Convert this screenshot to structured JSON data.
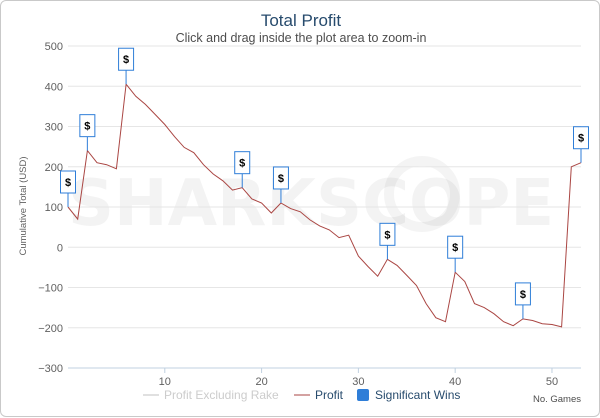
{
  "colors": {
    "title": "#274b6d",
    "profit_line": "#aa4643",
    "rake_line": "#c0c0c0",
    "significant_wins": "#2f7ed8",
    "grid": "#e6e6e6",
    "axis": "#c0d0e0"
  },
  "watermark": "SHARKSCOPE",
  "chart_data": {
    "type": "line",
    "title": "Total Profit",
    "subtitle": "Click and drag inside the plot area to zoom-in",
    "ylabel": "Cumulative Total (USD)",
    "xlabel": "No. Games",
    "xlim": [
      0,
      53
    ],
    "ylim": [
      -300,
      500
    ],
    "xticks": [
      10,
      20,
      30,
      40,
      50
    ],
    "yticks": [
      -300,
      -200,
      -100,
      0,
      100,
      200,
      300,
      400,
      500
    ],
    "legend_position": "bottom",
    "series": [
      {
        "name": "Profit Excluding Rake",
        "visible": false,
        "values": []
      },
      {
        "name": "Profit",
        "x": [
          0,
          1,
          2,
          3,
          4,
          5,
          6,
          7,
          8,
          9,
          10,
          11,
          12,
          13,
          14,
          15,
          16,
          17,
          18,
          19,
          20,
          21,
          22,
          23,
          24,
          25,
          26,
          27,
          28,
          29,
          30,
          31,
          32,
          33,
          34,
          35,
          36,
          37,
          38,
          39,
          40,
          41,
          42,
          43,
          44,
          45,
          46,
          47,
          48,
          49,
          50,
          51,
          52,
          53
        ],
        "values": [
          100,
          70,
          240,
          210,
          205,
          195,
          405,
          375,
          355,
          330,
          305,
          275,
          248,
          235,
          205,
          182,
          165,
          142,
          148,
          120,
          110,
          85,
          110,
          96,
          88,
          68,
          53,
          43,
          24,
          30,
          -22,
          -48,
          -72,
          -30,
          -45,
          -70,
          -95,
          -140,
          -175,
          -185,
          -62,
          -85,
          -140,
          -150,
          -165,
          -185,
          -195,
          -178,
          -182,
          -190,
          -192,
          -198,
          200,
          210
        ]
      },
      {
        "name": "Significant Wins",
        "type": "flags",
        "flag_label": "$",
        "x": [
          0,
          2,
          6,
          18,
          22,
          33,
          40,
          47,
          53
        ]
      }
    ]
  }
}
